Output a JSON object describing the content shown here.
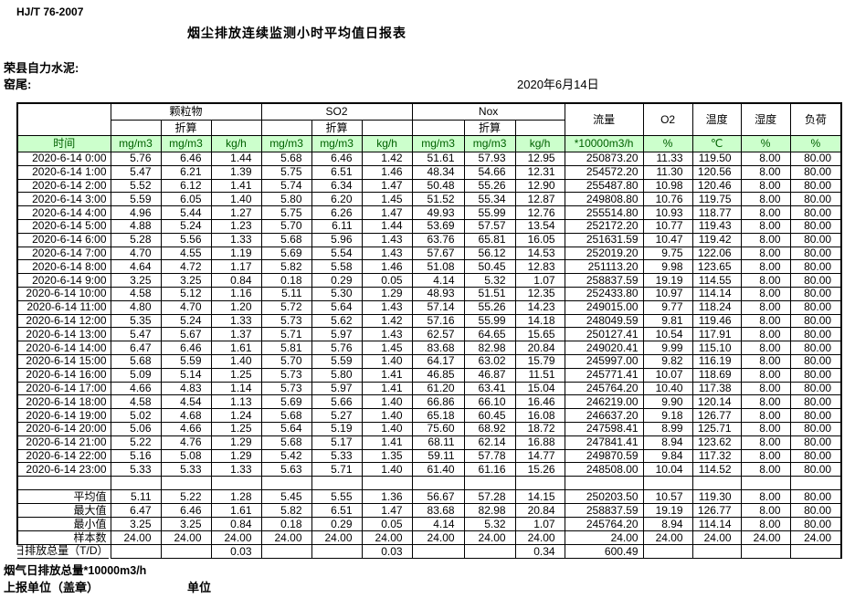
{
  "page": {
    "doc_number": "HJ/T  76-2007",
    "title": "烟尘排放连续监测小时平均值日报表",
    "company": "荣县自力水泥:",
    "stack": "窑尾:",
    "date": "2020年6月14日"
  },
  "colors": {
    "header_green_bg": "#ccffcc",
    "header_green_text": "#006100",
    "border": "#000000"
  },
  "table": {
    "header": {
      "time": "时间",
      "groups": [
        {
          "name": "颗粒物",
          "sub": "折算"
        },
        {
          "name": "SO2",
          "sub": "折算"
        },
        {
          "name": "Nox",
          "sub": "折算"
        }
      ],
      "singles": [
        "流量",
        "O2",
        "温度",
        "湿度",
        "负荷"
      ],
      "units": [
        "mg/m3",
        "mg/m3",
        "kg/h",
        "mg/m3",
        "mg/m3",
        "kg/h",
        "mg/m3",
        "mg/m3",
        "kg/h",
        "*10000m3/h",
        "%",
        "℃",
        "%",
        "%"
      ]
    },
    "rows": [
      {
        "time": "2020-6-14 0:00",
        "values": [
          "5.76",
          "6.46",
          "1.44",
          "5.68",
          "6.46",
          "1.42",
          "51.61",
          "57.93",
          "12.95",
          "250873.20",
          "11.33",
          "119.50",
          "8.00",
          "80.00"
        ]
      },
      {
        "time": "2020-6-14 1:00",
        "values": [
          "5.47",
          "6.21",
          "1.39",
          "5.75",
          "6.51",
          "1.46",
          "48.34",
          "54.66",
          "12.31",
          "254572.20",
          "11.30",
          "120.56",
          "8.00",
          "80.00"
        ]
      },
      {
        "time": "2020-6-14 2:00",
        "values": [
          "5.52",
          "6.12",
          "1.41",
          "5.74",
          "6.34",
          "1.47",
          "50.48",
          "55.26",
          "12.90",
          "255487.80",
          "10.98",
          "120.46",
          "8.00",
          "80.00"
        ]
      },
      {
        "time": "2020-6-14 3:00",
        "values": [
          "5.59",
          "6.05",
          "1.40",
          "5.80",
          "6.20",
          "1.45",
          "51.52",
          "55.34",
          "12.87",
          "249808.80",
          "10.76",
          "119.75",
          "8.00",
          "80.00"
        ]
      },
      {
        "time": "2020-6-14 4:00",
        "values": [
          "4.96",
          "5.44",
          "1.27",
          "5.75",
          "6.26",
          "1.47",
          "49.93",
          "55.99",
          "12.76",
          "255514.80",
          "10.93",
          "118.77",
          "8.00",
          "80.00"
        ]
      },
      {
        "time": "2020-6-14 5:00",
        "values": [
          "4.88",
          "5.24",
          "1.23",
          "5.70",
          "6.11",
          "1.44",
          "53.69",
          "57.57",
          "13.54",
          "252172.20",
          "10.77",
          "119.43",
          "8.00",
          "80.00"
        ]
      },
      {
        "time": "2020-6-14 6:00",
        "values": [
          "5.28",
          "5.56",
          "1.33",
          "5.68",
          "5.96",
          "1.43",
          "63.76",
          "65.81",
          "16.05",
          "251631.59",
          "10.47",
          "119.42",
          "8.00",
          "80.00"
        ]
      },
      {
        "time": "2020-6-14 7:00",
        "values": [
          "4.70",
          "4.55",
          "1.19",
          "5.69",
          "5.54",
          "1.43",
          "57.67",
          "56.12",
          "14.53",
          "252019.20",
          "9.75",
          "122.06",
          "8.00",
          "80.00"
        ]
      },
      {
        "time": "2020-6-14 8:00",
        "values": [
          "4.64",
          "4.72",
          "1.17",
          "5.82",
          "5.58",
          "1.46",
          "51.08",
          "50.45",
          "12.83",
          "251113.20",
          "9.98",
          "123.65",
          "8.00",
          "80.00"
        ]
      },
      {
        "time": "2020-6-14 9:00",
        "values": [
          "3.25",
          "3.25",
          "0.84",
          "0.18",
          "0.29",
          "0.05",
          "4.14",
          "5.32",
          "1.07",
          "258837.59",
          "19.19",
          "114.55",
          "8.00",
          "80.00"
        ]
      },
      {
        "time": "2020-6-14 10:00",
        "values": [
          "4.58",
          "5.12",
          "1.16",
          "5.11",
          "5.30",
          "1.29",
          "48.93",
          "51.51",
          "12.35",
          "252433.80",
          "10.97",
          "114.14",
          "8.00",
          "80.00"
        ]
      },
      {
        "time": "2020-6-14 11:00",
        "values": [
          "4.80",
          "4.70",
          "1.20",
          "5.72",
          "5.64",
          "1.43",
          "57.14",
          "55.26",
          "14.23",
          "249015.00",
          "9.77",
          "118.24",
          "8.00",
          "80.00"
        ]
      },
      {
        "time": "2020-6-14 12:00",
        "values": [
          "5.35",
          "5.24",
          "1.33",
          "5.73",
          "5.62",
          "1.42",
          "57.16",
          "55.99",
          "14.18",
          "248049.59",
          "9.81",
          "119.46",
          "8.00",
          "80.00"
        ]
      },
      {
        "time": "2020-6-14 13:00",
        "values": [
          "5.47",
          "5.67",
          "1.37",
          "5.71",
          "5.97",
          "1.43",
          "62.57",
          "64.65",
          "15.65",
          "250127.41",
          "10.54",
          "117.91",
          "8.00",
          "80.00"
        ]
      },
      {
        "time": "2020-6-14 14:00",
        "values": [
          "6.47",
          "6.46",
          "1.61",
          "5.81",
          "5.76",
          "1.45",
          "83.68",
          "82.98",
          "20.84",
          "249020.41",
          "9.99",
          "115.10",
          "8.00",
          "80.00"
        ]
      },
      {
        "time": "2020-6-14 15:00",
        "values": [
          "5.68",
          "5.59",
          "1.40",
          "5.70",
          "5.59",
          "1.40",
          "64.17",
          "63.02",
          "15.79",
          "245997.00",
          "9.82",
          "116.19",
          "8.00",
          "80.00"
        ]
      },
      {
        "time": "2020-6-14 16:00",
        "values": [
          "5.09",
          "5.14",
          "1.25",
          "5.73",
          "5.80",
          "1.41",
          "46.85",
          "46.87",
          "11.51",
          "245771.41",
          "10.07",
          "118.69",
          "8.00",
          "80.00"
        ]
      },
      {
        "time": "2020-6-14 17:00",
        "values": [
          "4.66",
          "4.83",
          "1.14",
          "5.73",
          "5.97",
          "1.41",
          "61.20",
          "63.41",
          "15.04",
          "245764.20",
          "10.40",
          "117.38",
          "8.00",
          "80.00"
        ]
      },
      {
        "time": "2020-6-14 18:00",
        "values": [
          "4.58",
          "4.54",
          "1.13",
          "5.69",
          "5.66",
          "1.40",
          "66.86",
          "66.10",
          "16.46",
          "246219.00",
          "9.90",
          "120.14",
          "8.00",
          "80.00"
        ]
      },
      {
        "time": "2020-6-14 19:00",
        "values": [
          "5.02",
          "4.68",
          "1.24",
          "5.68",
          "5.27",
          "1.40",
          "65.18",
          "60.45",
          "16.08",
          "246637.20",
          "9.18",
          "126.77",
          "8.00",
          "80.00"
        ]
      },
      {
        "time": "2020-6-14 20:00",
        "values": [
          "5.06",
          "4.66",
          "1.25",
          "5.64",
          "5.19",
          "1.40",
          "75.60",
          "68.92",
          "18.72",
          "247598.41",
          "8.99",
          "125.71",
          "8.00",
          "80.00"
        ]
      },
      {
        "time": "2020-6-14 21:00",
        "values": [
          "5.22",
          "4.76",
          "1.29",
          "5.68",
          "5.17",
          "1.41",
          "68.11",
          "62.14",
          "16.88",
          "247841.41",
          "8.94",
          "123.62",
          "8.00",
          "80.00"
        ]
      },
      {
        "time": "2020-6-14 22:00",
        "values": [
          "5.16",
          "5.08",
          "1.29",
          "5.42",
          "5.33",
          "1.35",
          "59.11",
          "57.78",
          "14.77",
          "249870.59",
          "9.84",
          "117.32",
          "8.00",
          "80.00"
        ]
      },
      {
        "time": "2020-6-14 23:00",
        "values": [
          "5.33",
          "5.33",
          "1.33",
          "5.63",
          "5.71",
          "1.40",
          "61.40",
          "61.16",
          "15.26",
          "248508.00",
          "10.04",
          "114.52",
          "8.00",
          "80.00"
        ]
      }
    ],
    "summary": [
      {
        "label": "平均值",
        "values": [
          "5.11",
          "5.22",
          "1.28",
          "5.45",
          "5.55",
          "1.36",
          "56.67",
          "57.28",
          "14.15",
          "250203.50",
          "10.57",
          "119.30",
          "8.00",
          "80.00"
        ]
      },
      {
        "label": "最大值",
        "values": [
          "6.47",
          "6.46",
          "1.61",
          "5.82",
          "6.51",
          "1.47",
          "83.68",
          "82.98",
          "20.84",
          "258837.59",
          "19.19",
          "126.77",
          "8.00",
          "80.00"
        ]
      },
      {
        "label": "最小值",
        "values": [
          "3.25",
          "3.25",
          "0.84",
          "0.18",
          "0.29",
          "0.05",
          "4.14",
          "5.32",
          "1.07",
          "245764.20",
          "8.94",
          "114.14",
          "8.00",
          "80.00"
        ]
      },
      {
        "label": "样本数",
        "values": [
          "24.00",
          "24.00",
          "24.00",
          "24.00",
          "24.00",
          "24.00",
          "24.00",
          "24.00",
          "24.00",
          "24.00",
          "24.00",
          "24.00",
          "24.00",
          "24.00"
        ]
      },
      {
        "label": "日排放总量（T/D）",
        "values": [
          "",
          "",
          "0.03",
          "",
          "",
          "0.03",
          "",
          "",
          "0.34",
          "600.49",
          "",
          "",
          "",
          ""
        ]
      }
    ]
  },
  "footer": {
    "gas_total": "烟气日排放总量*10000m3/h",
    "report_unit_label": "上报单位（盖章）",
    "unit_label": "单位"
  }
}
